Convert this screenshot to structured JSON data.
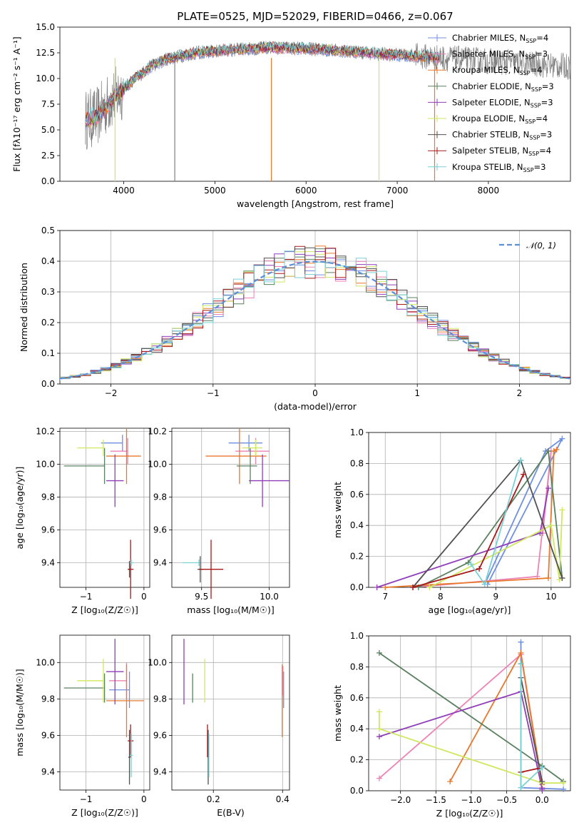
{
  "colors": {
    "Chabrier MILES": "#6f8fe0",
    "Salpeter MILES": "#ee82b6",
    "Kroupa MILES": "#e8782c",
    "Chabrier ELODIE": "#5a8060",
    "Salpeter ELODIE": "#8f3db8",
    "Kroupa ELODIE": "#cfe860",
    "Chabrier STELIB": "#505050",
    "Salpeter STELIB": "#a81818",
    "Kroupa STELIB": "#78d2d6",
    "data": "#808080",
    "normal": "#5b8fd8"
  },
  "chart_data": [
    {
      "id": "spectrum",
      "type": "line",
      "title": "PLATE=0525, MJD=52029, FIBERID=0466, z=0.067",
      "xlabel": "wavelength [Angstrom, rest frame]",
      "ylabel": "Flux [fλ10⁻¹⁷ erg cm⁻² s⁻¹ A⁻¹]",
      "xlim": [
        3300,
        8900
      ],
      "ylim": [
        0,
        15
      ],
      "xticks": [
        "4000",
        "5000",
        "6000",
        "7000",
        "8000"
      ],
      "yticks": [
        "0.0",
        "2.5",
        "5.0",
        "7.5",
        "10.0",
        "12.5",
        "15.0"
      ],
      "legend_position": "top-right",
      "series": [
        {
          "name": "Chabrier MILES, N_SSP=4",
          "label": "Chabrier MILES, N",
          "sub": "SSP",
          "suffix": "=4"
        },
        {
          "name": "Salpeter MILES, N_SSP=3",
          "label": "Salpeter MILES, N",
          "sub": "SSP",
          "suffix": "=3"
        },
        {
          "name": "Kroupa MILES, N_SSP=4",
          "label": "Kroupa MILES, N",
          "sub": "SSP",
          "suffix": "=4"
        },
        {
          "name": "Chabrier ELODIE, N_SSP=3",
          "label": "Chabrier ELODIE, N",
          "sub": "SSP",
          "suffix": "=3"
        },
        {
          "name": "Salpeter ELODIE, N_SSP=3",
          "label": "Salpeter ELODIE, N",
          "sub": "SSP",
          "suffix": "=3"
        },
        {
          "name": "Kroupa ELODIE, N_SSP=4",
          "label": "Kroupa ELODIE, N",
          "sub": "SSP",
          "suffix": "=4"
        },
        {
          "name": "Chabrier STELIB, N_SSP=3",
          "label": "Chabrier STELIB, N",
          "sub": "SSP",
          "suffix": "=3"
        },
        {
          "name": "Salpeter STELIB, N_SSP=4",
          "label": "Salpeter STELIB, N",
          "sub": "SSP",
          "suffix": "=4"
        },
        {
          "name": "Kroupa STELIB, N_SSP=3",
          "label": "Kroupa STELIB, N",
          "sub": "SSP",
          "suffix": "=3"
        }
      ],
      "continuum": {
        "x": [
          3580,
          3700,
          3850,
          3950,
          4100,
          4300,
          4500,
          4800,
          5200,
          5600,
          6000,
          6400,
          6800,
          7200,
          7500
        ],
        "y": [
          6.0,
          6.2,
          7.8,
          8.6,
          9.8,
          11.2,
          12.0,
          12.5,
          12.8,
          13.0,
          12.9,
          12.7,
          12.4,
          12.2,
          12.0
        ]
      },
      "spikes": [
        {
          "x": 3905,
          "y": 0
        },
        {
          "x": 4560,
          "y": 0
        },
        {
          "x": 5620,
          "y": 0
        },
        {
          "x": 6800,
          "y": 0
        },
        {
          "x": 7410,
          "y": 0
        }
      ]
    },
    {
      "id": "residuals",
      "type": "histogram",
      "xlabel": "(data-model)/error",
      "ylabel": "Normed distribution",
      "xlim": [
        -2.5,
        2.5
      ],
      "ylim": [
        0,
        0.5
      ],
      "xticks": [
        "−2",
        "−1",
        "0",
        "1",
        "2"
      ],
      "yticks": [
        "0.0",
        "0.1",
        "0.2",
        "0.3",
        "0.4",
        "0.5"
      ],
      "legend": "𝒩(0, 1)",
      "legend_position": "top-right",
      "bin_width": 0.1,
      "reference_curve": "normal(0,1)"
    },
    {
      "id": "age-vs-Z",
      "type": "scatter",
      "xlabel": "Z [log₁₀(Z/Z☉)]",
      "ylabel": "age  [log₁₀(age/yr)]",
      "xlim": [
        -1.45,
        0.1
      ],
      "ylim": [
        9.25,
        10.22
      ],
      "xticks": [
        "−1",
        "0"
      ],
      "yticks": [
        "9.4",
        "9.6",
        "9.8",
        "10.0",
        "10.2"
      ],
      "points": [
        {
          "model": "Chabrier MILES",
          "x": -0.37,
          "y": 10.13,
          "xerr": [
            0.37,
            0.0
          ],
          "yerr": 0.05
        },
        {
          "model": "Salpeter MILES",
          "x": -0.28,
          "y": 10.08,
          "xerr": [
            0.3,
            0.0
          ],
          "yerr": 0.08
        },
        {
          "model": "Kroupa MILES",
          "x": -0.3,
          "y": 10.05,
          "xerr": [
            0.35,
            0.25
          ],
          "yerr": 0.17
        },
        {
          "model": "Chabrier ELODIE",
          "x": -0.68,
          "y": 9.99,
          "xerr": [
            0.7,
            0.0
          ],
          "yerr": 0.11
        },
        {
          "model": "Salpeter ELODIE",
          "x": -0.5,
          "y": 9.9,
          "xerr": [
            0.15,
            0.15
          ],
          "yerr": 0.16
        },
        {
          "model": "Kroupa ELODIE",
          "x": -0.7,
          "y": 10.1,
          "xerr": [
            0.45,
            0.0
          ],
          "yerr": 0.05
        },
        {
          "model": "Chabrier STELIB",
          "x": -0.25,
          "y": 9.36,
          "xerr": [
            0.02,
            0.02
          ],
          "yerr": 0.05
        },
        {
          "model": "Salpeter STELIB",
          "x": -0.23,
          "y": 9.36,
          "xerr": [
            0.05,
            0.05
          ],
          "yerr": 0.18
        },
        {
          "model": "Kroupa STELIB",
          "x": -0.22,
          "y": 9.4,
          "xerr": [
            0.02,
            0.04
          ],
          "yerr": 0.02
        }
      ]
    },
    {
      "id": "age-vs-mass",
      "type": "scatter",
      "xlabel": "mass [log₁₀(M/M☉)]",
      "ylabel": "",
      "xlim": [
        9.28,
        10.15
      ],
      "ylim": [
        9.25,
        10.22
      ],
      "xticks": [
        "9.5",
        "10.0"
      ],
      "yticks": [
        "9.4",
        "9.6",
        "9.8",
        "10.0",
        "10.2"
      ],
      "points": [
        {
          "model": "Chabrier MILES",
          "x": 9.85,
          "y": 10.13,
          "xerr": [
            0.15,
            0.1
          ],
          "yerr": 0.05
        },
        {
          "model": "Salpeter MILES",
          "x": 9.9,
          "y": 10.08,
          "xerr": [
            0.15,
            0.1
          ],
          "yerr": 0.08
        },
        {
          "model": "Kroupa MILES",
          "x": 9.78,
          "y": 10.05,
          "xerr": [
            0.25,
            0.2
          ],
          "yerr": 0.17
        },
        {
          "model": "Chabrier ELODIE",
          "x": 9.86,
          "y": 9.99,
          "xerr": [
            0.1,
            0.05
          ],
          "yerr": 0.11
        },
        {
          "model": "Salpeter ELODIE",
          "x": 9.95,
          "y": 9.9,
          "xerr": [
            0.1,
            0.2
          ],
          "yerr": 0.16
        },
        {
          "model": "Kroupa ELODIE",
          "x": 9.9,
          "y": 10.1,
          "xerr": [
            0.1,
            0.05
          ],
          "yerr": 0.05
        },
        {
          "model": "Chabrier STELIB",
          "x": 9.49,
          "y": 9.36,
          "xerr": [
            0.02,
            0.02
          ],
          "yerr": 0.08
        },
        {
          "model": "Salpeter STELIB",
          "x": 9.57,
          "y": 9.36,
          "xerr": [
            0.09,
            0.09
          ],
          "yerr": 0.18
        },
        {
          "model": "Kroupa STELIB",
          "x": 9.48,
          "y": 9.4,
          "xerr": [
            0.12,
            0.0
          ],
          "yerr": 0.02
        }
      ]
    },
    {
      "id": "massweight-vs-age",
      "type": "line",
      "xlabel": "age  [log₁₀(age/yr)]",
      "ylabel": "mass weight",
      "xlim": [
        6.7,
        10.35
      ],
      "ylim": [
        0,
        1.0
      ],
      "xticks": [
        "7",
        "8",
        "9",
        "10"
      ],
      "yticks": [
        "0.0",
        "0.2",
        "0.4",
        "0.6",
        "0.8",
        "1.0"
      ],
      "series": [
        {
          "model": "Chabrier MILES",
          "x": [
            8.8,
            9.9,
            10.2,
            8.85
          ],
          "y": [
            0.02,
            0.88,
            0.96,
            0.02
          ]
        },
        {
          "model": "Salpeter MILES",
          "x": [
            7.5,
            9.75,
            10.0,
            9.85
          ],
          "y": [
            0.0,
            0.07,
            0.88,
            0.35
          ]
        },
        {
          "model": "Kroupa MILES",
          "x": [
            7.0,
            9.95,
            10.05,
            10.1
          ],
          "y": [
            0.0,
            0.06,
            0.88,
            0.89
          ]
        },
        {
          "model": "Chabrier ELODIE",
          "x": [
            7.6,
            8.5,
            9.95,
            10.2
          ],
          "y": [
            0.0,
            0.16,
            0.88,
            0.06
          ]
        },
        {
          "model": "Salpeter ELODIE",
          "x": [
            6.85,
            9.8,
            9.95
          ],
          "y": [
            0.0,
            0.35,
            0.64
          ]
        },
        {
          "model": "Kroupa ELODIE",
          "x": [
            7.8,
            10.0,
            10.15,
            10.2
          ],
          "y": [
            0.0,
            0.4,
            0.05,
            0.5
          ]
        },
        {
          "model": "Chabrier STELIB",
          "x": [
            7.5,
            9.45,
            10.2
          ],
          "y": [
            0.0,
            0.82,
            0.06
          ]
        },
        {
          "model": "Salpeter STELIB",
          "x": [
            7.5,
            8.7,
            9.5
          ],
          "y": [
            0.0,
            0.12,
            0.73
          ]
        },
        {
          "model": "Kroupa STELIB",
          "x": [
            8.55,
            8.8,
            9.45
          ],
          "y": [
            0.15,
            0.02,
            0.82
          ]
        }
      ]
    },
    {
      "id": "mass-vs-Z",
      "type": "scatter",
      "xlabel": "Z [log₁₀(Z/Z☉)]",
      "ylabel": "mass [log₁₀(M/M☉)]",
      "xlim": [
        -1.45,
        0.1
      ],
      "ylim": [
        9.3,
        10.15
      ],
      "xticks": [
        "−1",
        "0"
      ],
      "yticks": [
        "9.4",
        "9.6",
        "9.8",
        "10.0"
      ],
      "points": [
        {
          "model": "Chabrier MILES",
          "x": -0.25,
          "y": 9.85,
          "xerr": [
            0.35,
            0.0
          ],
          "yerr": 0.1
        },
        {
          "model": "Salpeter MILES",
          "x": -0.3,
          "y": 9.9,
          "xerr": [
            0.3,
            0.0
          ],
          "yerr": 0.1
        },
        {
          "model": "Kroupa MILES",
          "x": -0.3,
          "y": 9.79,
          "xerr": [
            0.35,
            0.3
          ],
          "yerr": 0.2
        },
        {
          "model": "Chabrier ELODIE",
          "x": -0.68,
          "y": 9.86,
          "xerr": [
            0.7,
            0.0
          ],
          "yerr": 0.08
        },
        {
          "model": "Salpeter ELODIE",
          "x": -0.5,
          "y": 9.95,
          "xerr": [
            0.15,
            0.15
          ],
          "yerr": 0.18
        },
        {
          "model": "Kroupa ELODIE",
          "x": -0.7,
          "y": 9.9,
          "xerr": [
            0.45,
            0.0
          ],
          "yerr": 0.12
        },
        {
          "model": "Chabrier STELIB",
          "x": -0.25,
          "y": 9.48,
          "xerr": [
            0.02,
            0.02
          ],
          "yerr": 0.15
        },
        {
          "model": "Salpeter STELIB",
          "x": -0.23,
          "y": 9.57,
          "xerr": [
            0.05,
            0.05
          ],
          "yerr": 0.09
        },
        {
          "model": "Kroupa STELIB",
          "x": -0.22,
          "y": 9.49,
          "xerr": [
            0.02,
            0.03
          ],
          "yerr": 0.12
        }
      ]
    },
    {
      "id": "mass-vs-EBV",
      "type": "scatter",
      "xlabel": "E(B-V)",
      "ylabel": "",
      "xlim": [
        0.08,
        0.42
      ],
      "ylim": [
        9.3,
        10.15
      ],
      "xticks": [
        "0.2",
        "0.4"
      ],
      "yticks": [
        "9.4",
        "9.6",
        "9.8",
        "10.0"
      ],
      "points": [
        {
          "model": "Chabrier MILES",
          "x": 0.403,
          "y": 9.85,
          "yerr": 0.1
        },
        {
          "model": "Salpeter MILES",
          "x": 0.401,
          "y": 9.9,
          "yerr": 0.08
        },
        {
          "model": "Kroupa MILES",
          "x": 0.399,
          "y": 9.79,
          "yerr": 0.2
        },
        {
          "model": "Chabrier ELODIE",
          "x": 0.14,
          "y": 9.86,
          "yerr": 0.08
        },
        {
          "model": "Salpeter ELODIE",
          "x": 0.115,
          "y": 9.95,
          "yerr": 0.18
        },
        {
          "model": "Kroupa ELODIE",
          "x": 0.175,
          "y": 9.9,
          "yerr": 0.12
        },
        {
          "model": "Chabrier STELIB",
          "x": 0.185,
          "y": 9.48,
          "yerr": 0.15
        },
        {
          "model": "Salpeter STELIB",
          "x": 0.183,
          "y": 9.57,
          "yerr": 0.09
        },
        {
          "model": "Kroupa STELIB",
          "x": 0.187,
          "y": 9.49,
          "yerr": 0.12
        }
      ]
    },
    {
      "id": "massweight-vs-Z",
      "type": "line",
      "xlabel": "Z [log₁₀(Z/Z☉)]",
      "ylabel": "mass weight",
      "xlim": [
        -2.45,
        0.4
      ],
      "ylim": [
        0,
        1.0
      ],
      "xticks": [
        "−2.0",
        "−1.5",
        "−1.0",
        "−0.5",
        "0.0"
      ],
      "yticks": [
        "0.0",
        "0.2",
        "0.4",
        "0.6",
        "0.8",
        "1.0"
      ],
      "series": [
        {
          "model": "Chabrier MILES",
          "x": [
            -0.3,
            -0.3,
            0.3
          ],
          "y": [
            0.96,
            0.02,
            0.01
          ]
        },
        {
          "model": "Salpeter MILES",
          "x": [
            -2.3,
            -0.3,
            0.0
          ],
          "y": [
            0.08,
            0.88,
            0.02
          ]
        },
        {
          "model": "Kroupa MILES",
          "x": [
            -1.3,
            -0.3,
            0.0
          ],
          "y": [
            0.06,
            0.89,
            0.04
          ]
        },
        {
          "model": "Chabrier ELODIE",
          "x": [
            -2.3,
            0.0,
            0.3
          ],
          "y": [
            0.89,
            0.16,
            0.06
          ]
        },
        {
          "model": "Salpeter ELODIE",
          "x": [
            -2.3,
            -0.3,
            0.0
          ],
          "y": [
            0.35,
            0.64,
            0.01
          ]
        },
        {
          "model": "Kroupa ELODIE",
          "x": [
            -2.3,
            -2.3,
            0.0,
            0.3
          ],
          "y": [
            0.51,
            0.4,
            0.05,
            0.05
          ]
        },
        {
          "model": "Chabrier STELIB",
          "x": [
            -0.3,
            -0.3,
            0.0
          ],
          "y": [
            0.82,
            0.73,
            0.06
          ]
        },
        {
          "model": "Salpeter STELIB",
          "x": [
            -0.3,
            0.0
          ],
          "y": [
            0.12,
            0.15
          ]
        },
        {
          "model": "Kroupa STELIB",
          "x": [
            -0.3,
            -0.3,
            0.0
          ],
          "y": [
            0.82,
            0.02,
            0.15
          ]
        }
      ]
    }
  ]
}
